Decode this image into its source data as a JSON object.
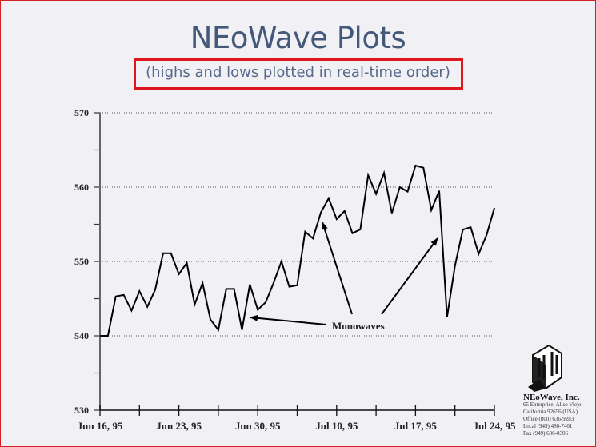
{
  "title": "NEoWave Plots",
  "subtitle": "(highs and lows plotted in real-time order)",
  "annotation": "Monowaves",
  "company": {
    "name": "NEoWave, Inc.",
    "address1": "65 Enterprise, Aliso Viejo",
    "address2": "California 92656 (USA)",
    "office": "Office (800) 636-9283",
    "local": "Local (949) 480-7401",
    "fax": "Fax (949) 606-0306"
  },
  "colors": {
    "line": "#000000",
    "title": "#44597a",
    "highlight": "#e0161e"
  },
  "chart_data": {
    "type": "line",
    "title": "NEoWave Plots",
    "ylim": [
      530,
      570
    ],
    "yticks": [
      530,
      540,
      550,
      560,
      570
    ],
    "grid": true,
    "xtick_labels": [
      "Jun 16, 95",
      "Jun 23, 95",
      "Jun 30, 95",
      "Jul 10, 95",
      "Jul 17, 95",
      "Jul 24, 95"
    ],
    "xtick_every": 10,
    "values": [
      540.0,
      540.0,
      545.3,
      545.5,
      543.4,
      546.0,
      543.9,
      546.2,
      551.1,
      551.1,
      548.3,
      549.8,
      544.2,
      547.1,
      542.2,
      540.8,
      546.3,
      546.3,
      540.8,
      546.9,
      543.5,
      544.5,
      547.1,
      550.0,
      546.6,
      546.8,
      554.0,
      553.1,
      556.6,
      558.5,
      555.7,
      556.8,
      553.8,
      554.3,
      561.6,
      559.1,
      561.9,
      556.5,
      560.0,
      559.4,
      562.9,
      562.6,
      556.9,
      559.5,
      542.5,
      549.4,
      554.3,
      554.6,
      551.0,
      553.5,
      557.2
    ]
  }
}
